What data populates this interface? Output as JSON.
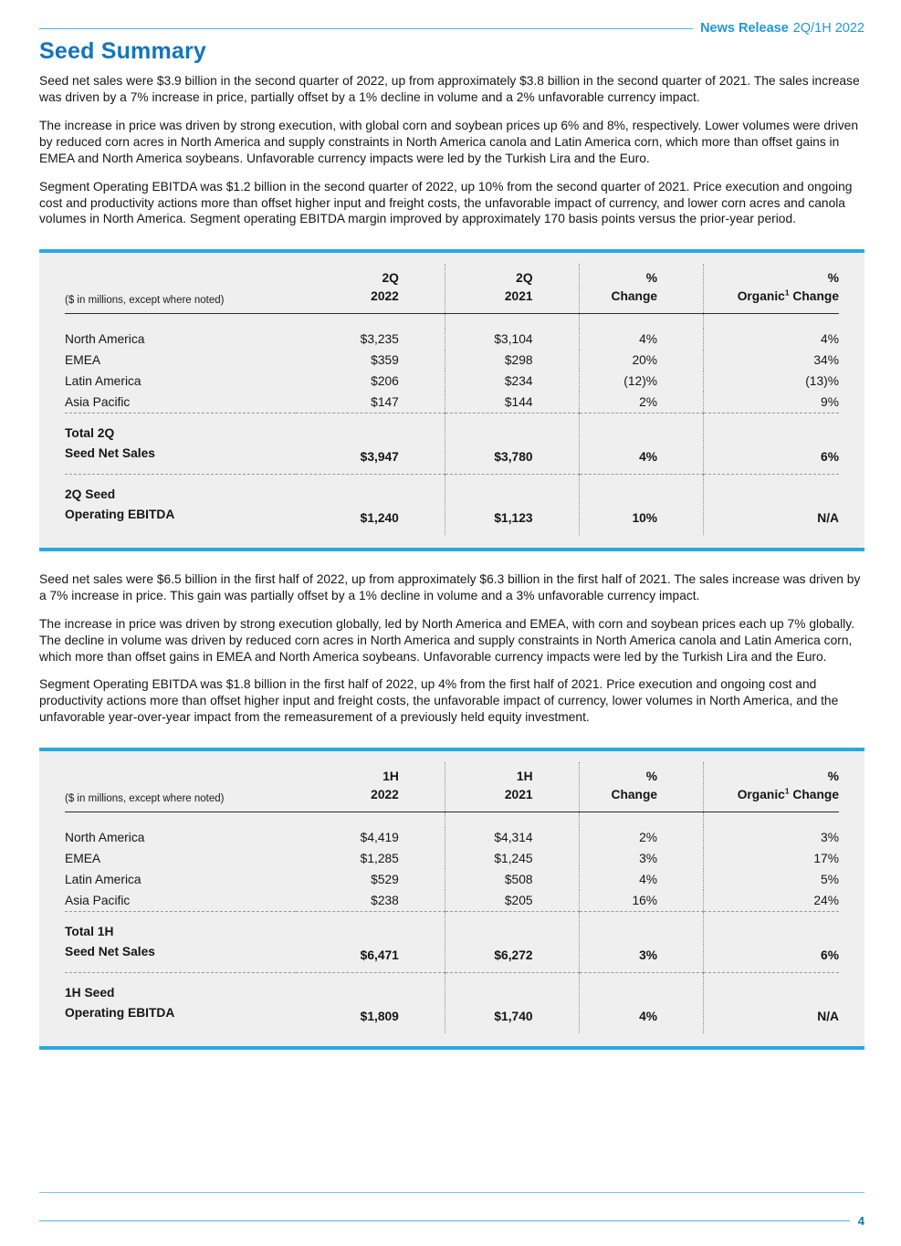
{
  "colors": {
    "heading_blue": "#1375bc",
    "accent_cyan": "#29a9e0",
    "masthead_text_blue": "#2199d2",
    "table_background": "#efeff0"
  },
  "masthead": {
    "label_bold": "News Release",
    "label_rest": "2Q/1H 2022"
  },
  "page": {
    "title": "Seed Summary",
    "page_number": "4"
  },
  "paragraphs_2q": [
    "Seed net sales were $3.9 billion in the second quarter of 2022, up from approximately $3.8 billion in the second quarter of 2021. The sales increase was driven by a 7% increase in price, partially offset by a 1% decline in volume and a 2% unfavorable currency impact.",
    "The increase in price was driven by strong execution, with global corn and soybean prices up 6% and 8%, respectively. Lower volumes were driven by reduced corn acres in North America and supply constraints in North America canola and Latin America corn, which more than offset gains in EMEA and North America soybeans. Unfavorable currency impacts were led by the Turkish Lira and the Euro.",
    "Segment Operating EBITDA was $1.2 billion in the second quarter of 2022, up 10% from the second quarter of 2021. Price execution and ongoing cost and productivity actions more than offset higher input and freight costs, the unfavorable impact of currency, and lower corn acres and canola volumes in North America. Segment operating EBITDA margin improved by approximately 170 basis points versus the prior-year period."
  ],
  "paragraphs_1h": [
    "Seed net sales were $6.5 billion in the first half of 2022, up from approximately $6.3 billion in the first half of 2021. The sales increase was driven by a 7% increase in price. This gain was partially offset by a 1% decline in volume and a 3% unfavorable currency impact.",
    "The increase in price was driven by strong execution globally, led by North America and EMEA, with corn and soybean prices each up 7% globally. The decline in volume was driven by reduced corn acres in North America and supply constraints in North America canola and Latin America corn, which more than offset gains in EMEA and North America soybeans. Unfavorable currency impacts were led by the Turkish Lira and the Euro.",
    "Segment Operating EBITDA was $1.8 billion in the first half of 2022, up 4% from the first half of 2021. Price execution and ongoing cost and productivity actions more than offset higher input and freight costs, the unfavorable impact of currency, lower volumes in North America, and the unfavorable year-over-year impact from the remeasurement of a previously held equity investment."
  ],
  "table_2q": {
    "note": "($ in millions, except where noted)",
    "headers": [
      {
        "line1": "2Q",
        "line2": "2022"
      },
      {
        "line1": "2Q",
        "line2": "2021"
      },
      {
        "line1": "%",
        "line2": "Change"
      },
      {
        "line1": "%",
        "line2a": "Organic",
        "sup": "1",
        "line2b": "Change"
      }
    ],
    "rows": [
      {
        "label": "North America",
        "v2022": "$3,235",
        "v2021": "$3,104",
        "change": "4%",
        "organic": "4%"
      },
      {
        "label": "EMEA",
        "v2022": "$359",
        "v2021": "$298",
        "change": "20%",
        "organic": "34%"
      },
      {
        "label": "Latin America",
        "v2022": "$206",
        "v2021": "$234",
        "change": "(12)%",
        "organic": "(13)%"
      },
      {
        "label": "Asia Pacific",
        "v2022": "$147",
        "v2021": "$144",
        "change": "2%",
        "organic": "9%"
      }
    ],
    "total": {
      "label_line1": "Total 2Q",
      "label_line2": "Seed Net Sales",
      "v2022": "$3,947",
      "v2021": "$3,780",
      "change": "4%",
      "organic": "6%"
    },
    "ebitda": {
      "label_line1": "2Q Seed",
      "label_line2": "Operating EBITDA",
      "v2022": "$1,240",
      "v2021": "$1,123",
      "change": "10%",
      "organic": "N/A"
    }
  },
  "table_1h": {
    "note": "($ in millions, except where noted)",
    "headers": [
      {
        "line1": "1H",
        "line2": "2022"
      },
      {
        "line1": "1H",
        "line2": "2021"
      },
      {
        "line1": "%",
        "line2": "Change"
      },
      {
        "line1": "%",
        "line2a": "Organic",
        "sup": "1",
        "line2b": "Change"
      }
    ],
    "rows": [
      {
        "label": "North America",
        "v2022": "$4,419",
        "v2021": "$4,314",
        "change": "2%",
        "organic": "3%"
      },
      {
        "label": "EMEA",
        "v2022": "$1,285",
        "v2021": "$1,245",
        "change": "3%",
        "organic": "17%"
      },
      {
        "label": "Latin America",
        "v2022": "$529",
        "v2021": "$508",
        "change": "4%",
        "organic": "5%"
      },
      {
        "label": "Asia Pacific",
        "v2022": "$238",
        "v2021": "$205",
        "change": "16%",
        "organic": "24%"
      }
    ],
    "total": {
      "label_line1": "Total 1H",
      "label_line2": "Seed Net Sales",
      "v2022": "$6,471",
      "v2021": "$6,272",
      "change": "3%",
      "organic": "6%"
    },
    "ebitda": {
      "label_line1": "1H Seed",
      "label_line2": "Operating EBITDA",
      "v2022": "$1,809",
      "v2021": "$1,740",
      "change": "4%",
      "organic": "N/A"
    }
  }
}
